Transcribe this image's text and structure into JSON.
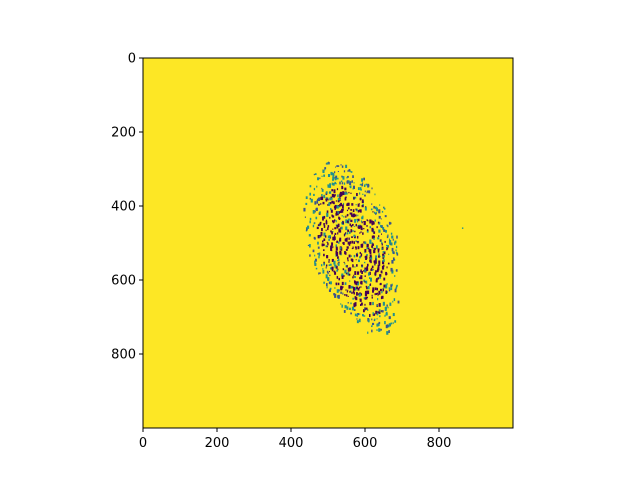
{
  "figure": {
    "image_extent": {
      "x": [
        0,
        1000
      ],
      "y": [
        0,
        1000
      ]
    },
    "y_axis_inverted": true,
    "colormap": "viridis",
    "colors": {
      "background": "#fde725",
      "ridge_dark": "#440154",
      "ridge_mid": "#21918c",
      "ridge_light": "#3b528b"
    },
    "x_ticks": [
      {
        "value": 0,
        "label": "0"
      },
      {
        "value": 200,
        "label": "200"
      },
      {
        "value": 400,
        "label": "400"
      },
      {
        "value": 600,
        "label": "600"
      },
      {
        "value": 800,
        "label": "800"
      }
    ],
    "y_ticks": [
      {
        "value": 0,
        "label": "0"
      },
      {
        "value": 200,
        "label": "200"
      },
      {
        "value": 400,
        "label": "400"
      },
      {
        "value": 600,
        "label": "600"
      },
      {
        "value": 800,
        "label": "800"
      }
    ],
    "subject": "fingerprint-impression",
    "impression": {
      "center": [
        572,
        520
      ],
      "extent_x": [
        410,
        720
      ],
      "extent_y": [
        280,
        780
      ]
    }
  }
}
